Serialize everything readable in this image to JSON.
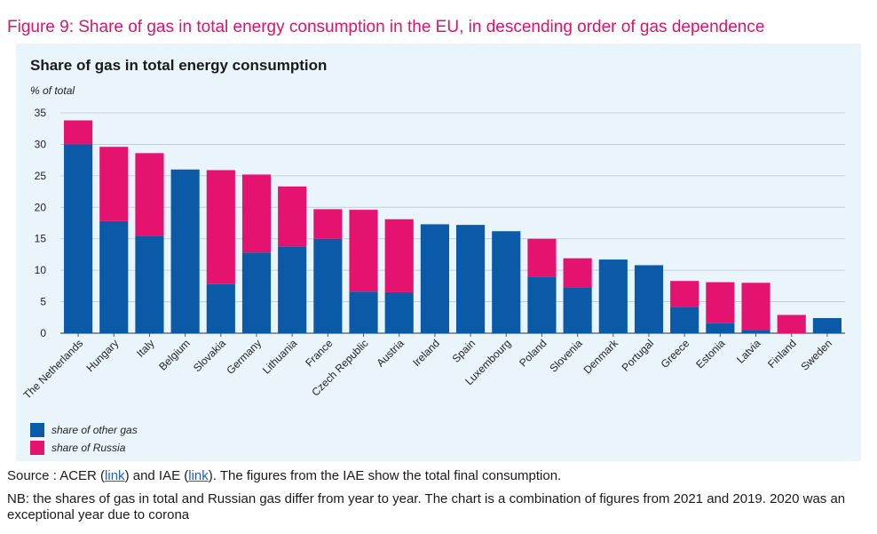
{
  "figure_title": "Figure 9: Share of gas in total energy consumption in the EU, in descending order of gas dependence",
  "colors": {
    "other": "#0b5aa8",
    "russia": "#e4136f",
    "title": "#d6156c",
    "panel": "#e9f4fb"
  },
  "source": {
    "prefix": "Source : ACER (",
    "link1": "link",
    "middle": ") and IAE (",
    "link2": "link",
    "suffix": "). The figures from the IAE show the total final consumption."
  },
  "nb": "NB: the shares of gas in total and Russian gas differ from year to year. The chart is a combination of figures from 2021 and 2019. 2020 was an exceptional year due to corona",
  "chart_data": {
    "type": "bar",
    "stacked": true,
    "title": "Share of gas in total energy consumption",
    "ylabel": "% of total",
    "ylim": [
      0,
      35
    ],
    "yticks": [
      0,
      5,
      10,
      15,
      20,
      25,
      30,
      35
    ],
    "grid": true,
    "legend_position": "bottom-left",
    "categories": [
      "The Netherlands",
      "Hungary",
      "Italy",
      "Belgium",
      "Slovakia",
      "Germany",
      "Lithuania",
      "France",
      "Czech Republic",
      "Austria",
      "Ireland",
      "Spain",
      "Luxembourg",
      "Poland",
      "Slovenia",
      "Denmark",
      "Portugal",
      "Greece",
      "Estonia",
      "Latvia",
      "Finland",
      "Sweden"
    ],
    "series": [
      {
        "name": "share of other gas",
        "values": [
          30.0,
          17.8,
          15.5,
          26.0,
          7.8,
          12.8,
          13.8,
          15.0,
          6.6,
          6.5,
          17.3,
          17.2,
          16.2,
          9.0,
          7.2,
          11.7,
          10.8,
          4.1,
          1.6,
          0.5,
          0.0,
          2.4
        ]
      },
      {
        "name": "share of Russia",
        "values": [
          3.8,
          11.8,
          13.1,
          0.0,
          18.1,
          12.4,
          9.5,
          4.7,
          13.0,
          11.6,
          0.0,
          0.0,
          0.0,
          6.0,
          4.7,
          0.0,
          0.0,
          4.2,
          6.5,
          7.5,
          2.9,
          0.0
        ]
      }
    ]
  }
}
